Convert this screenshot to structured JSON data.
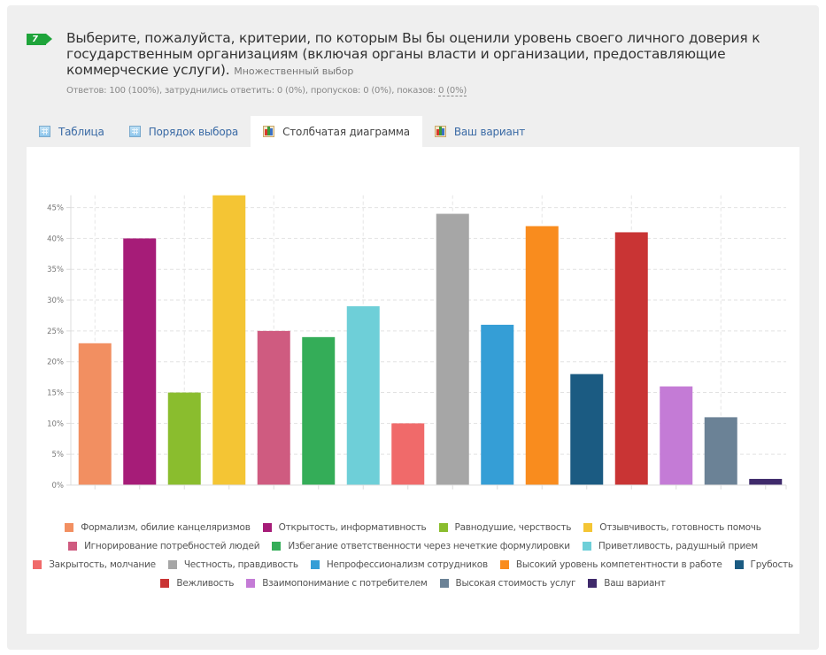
{
  "question": {
    "number": "7",
    "title": "Выберите, пожалуйста, критерии, по которым Вы бы оценили уровень своего личного доверия к государственным организациям (включая органы власти и организации, предоставляющие коммерческие услуги).",
    "type_label": "Множественный выбор",
    "stats_prefix": "Ответов: 100 (100%), затруднились ответить: 0 (0%), пропусков: 0 (0%), показов: ",
    "stats_link": "0 (0%)",
    "badge_color": "#1ea43a"
  },
  "tabs": [
    {
      "label": "Таблица",
      "icon": "table-icon",
      "active": false
    },
    {
      "label": "Порядок выбора",
      "icon": "table-icon",
      "active": false
    },
    {
      "label": "Столбчатая диаграмма",
      "icon": "bar-chart-icon",
      "active": true
    },
    {
      "label": "Ваш вариант",
      "icon": "bar-chart-icon",
      "active": false
    }
  ],
  "chart_data": {
    "type": "bar",
    "title": "",
    "xlabel": "",
    "ylabel": "",
    "ylim": [
      0,
      47
    ],
    "yticks": [
      0,
      5,
      10,
      15,
      20,
      25,
      30,
      35,
      40,
      45
    ],
    "ytick_format": "{v}%",
    "grid": true,
    "legend_position": "bottom",
    "categories": [
      "Формализм, обилие канцеляризмов",
      "Открытость, информативность",
      "Равнодушие, черствость",
      "Отзывчивость, готовность помочь",
      "Игнорирование потребностей людей",
      "Избегание ответственности через нечеткие формулировки",
      "Приветливость, радушный прием",
      "Закрытость, молчание",
      "Честность, правдивость",
      "Непрофессионализм сотрудников",
      "Высокий уровень компетентности в работе",
      "Грубость",
      "Вежливость",
      "Взаимопонимание с потребителем",
      "Высокая стоимость услуг",
      "Ваш вариант"
    ],
    "values": [
      23,
      40,
      15,
      47,
      25,
      24,
      29,
      10,
      44,
      26,
      42,
      18,
      41,
      16,
      11,
      1
    ],
    "colors": [
      "#f28f61",
      "#a61c78",
      "#8abd2e",
      "#f4c534",
      "#cf5b80",
      "#34ad58",
      "#6ecfd8",
      "#f06a6a",
      "#a6a6a6",
      "#359ed6",
      "#f98c1e",
      "#1b5b82",
      "#c93434",
      "#c47bd6",
      "#6b8296",
      "#3f2a6b"
    ],
    "legend_rows": [
      [
        0,
        1,
        2,
        3
      ],
      [
        4,
        5,
        6
      ],
      [
        7,
        8,
        9,
        10,
        11
      ],
      [
        12,
        13,
        14,
        15
      ]
    ]
  }
}
